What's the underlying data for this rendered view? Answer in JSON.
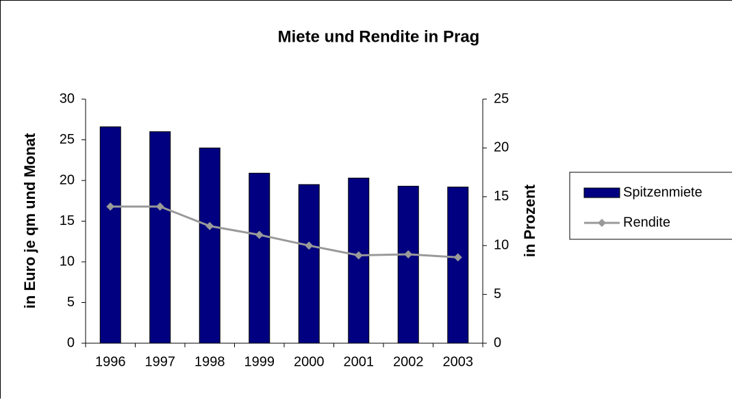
{
  "chart_data": {
    "type": "bar_line",
    "title": "Miete und Rendite in Prag",
    "y_label": "in Euro je qm und Monat",
    "y2_label": "in Prozent",
    "categories": [
      "1996",
      "1997",
      "1998",
      "1999",
      "2000",
      "2001",
      "2002",
      "2003"
    ],
    "series": [
      {
        "name": "Spitzenmiete",
        "type": "bar",
        "color": "#000080",
        "values": [
          26.6,
          26.0,
          24.0,
          20.9,
          19.5,
          20.3,
          19.3,
          19.2
        ]
      },
      {
        "name": "Rendite",
        "type": "line",
        "color": "#999999",
        "axis": "y2",
        "values": [
          14.0,
          14.0,
          12.0,
          11.1,
          10.0,
          9.0,
          9.1,
          8.8
        ]
      }
    ],
    "ylim": [
      0,
      30
    ],
    "yticks": [
      0,
      5,
      10,
      15,
      20,
      25,
      30
    ],
    "y2lim": [
      0,
      25
    ],
    "y2ticks": [
      0,
      5,
      10,
      15,
      20,
      25
    ],
    "grid": false,
    "legend": "right"
  }
}
